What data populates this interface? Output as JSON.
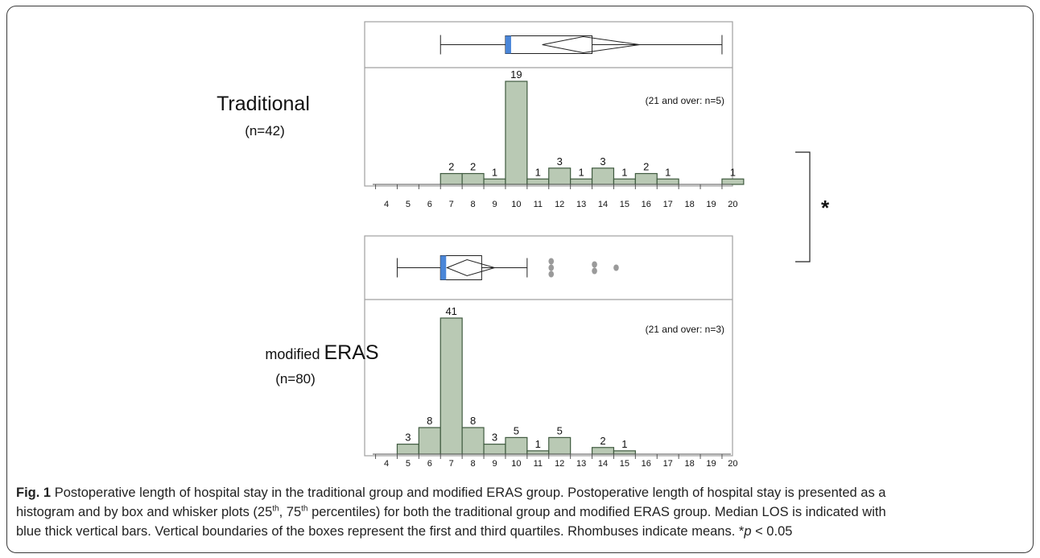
{
  "chart_data": [
    {
      "type": "bar",
      "group_label": "Traditional",
      "n_label": "(n=42)",
      "x_ticks": [
        "4",
        "5",
        "6",
        "7",
        "8",
        "9",
        "10",
        "11",
        "12",
        "13",
        "14",
        "15",
        "16",
        "17",
        "18",
        "19",
        "20"
      ],
      "bins": [
        {
          "day": 7,
          "count": 2
        },
        {
          "day": 8,
          "count": 2
        },
        {
          "day": 9,
          "count": 1
        },
        {
          "day": 10,
          "count": 19
        },
        {
          "day": 11,
          "count": 1
        },
        {
          "day": 12,
          "count": 3
        },
        {
          "day": 13,
          "count": 1
        },
        {
          "day": 14,
          "count": 3
        },
        {
          "day": 15,
          "count": 1
        },
        {
          "day": 16,
          "count": 2
        },
        {
          "day": 17,
          "count": 1
        },
        {
          "day": 20,
          "count": 1
        }
      ],
      "note": "(21 and over: n=5)",
      "ylim": [
        0,
        19
      ],
      "box": {
        "whisker_low": 6.5,
        "q1": 9.5,
        "median": 9.5,
        "q3": 13.5,
        "whisker_high": 19.5,
        "mean_diamond": [
          11.2,
          15.7
        ],
        "outliers": []
      }
    },
    {
      "type": "bar",
      "group_label_prefix": "modified ",
      "group_label": "ERAS",
      "n_label": "(n=80)",
      "x_ticks": [
        "4",
        "5",
        "6",
        "7",
        "8",
        "9",
        "10",
        "11",
        "12",
        "13",
        "14",
        "15",
        "16",
        "17",
        "18",
        "19",
        "20"
      ],
      "bins": [
        {
          "day": 5,
          "count": 3
        },
        {
          "day": 6,
          "count": 8
        },
        {
          "day": 7,
          "count": 41
        },
        {
          "day": 8,
          "count": 8
        },
        {
          "day": 9,
          "count": 3
        },
        {
          "day": 10,
          "count": 5
        },
        {
          "day": 11,
          "count": 1
        },
        {
          "day": 12,
          "count": 5
        },
        {
          "day": 14,
          "count": 2
        },
        {
          "day": 15,
          "count": 1
        }
      ],
      "note": "(21 and over: n=3)",
      "ylim": [
        0,
        41
      ],
      "box": {
        "whisker_low": 4.5,
        "q1": 6.5,
        "median": 6.5,
        "q3": 8.4,
        "whisker_high": 10.5,
        "mean_diamond": [
          6.8,
          9.0
        ],
        "outliers": [
          11.5,
          11.5,
          11.5,
          13.5,
          13.5,
          14.5
        ]
      }
    }
  ],
  "significance_marker": "*",
  "colors": {
    "bar_fill": "#b9c9b4",
    "bar_stroke": "#3f5a3f",
    "median": "#4a86d8",
    "outlier": "#9a9a9a",
    "panel_border": "#a0a0a0"
  },
  "caption": {
    "label": "Fig. 1",
    "line1": "Postoperative length of hospital stay in the traditional group and modified ERAS group. Postoperative length of hospital stay is presented as a",
    "line2_pre": "histogram and by box and whisker plots (25",
    "sup1": "th",
    "line2_mid": ", 75",
    "sup2": "th",
    "line2_post": " percentiles) for both the traditional group and modified ERAS group. Median LOS is indicated with",
    "line3": "blue thick vertical bars. Vertical boundaries of the boxes represent the first and third quartiles. Rhombuses indicate means. *",
    "p_italic": "p",
    "p_tail": " < 0.05"
  }
}
